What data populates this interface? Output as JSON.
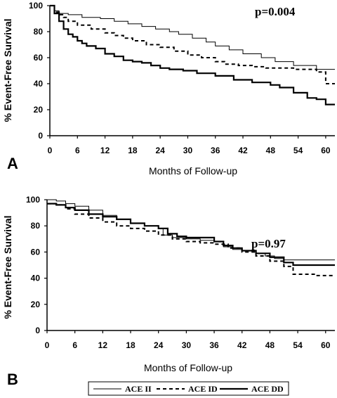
{
  "chart_data": [
    {
      "type": "line",
      "panel_label": "A",
      "annotation": "p=0.004",
      "xlabel": "Months of Follow-up",
      "ylabel": "% Event-Free Survival",
      "xlim": [
        0,
        62
      ],
      "ylim": [
        0,
        100
      ],
      "xticks": [
        0,
        6,
        12,
        18,
        24,
        30,
        36,
        42,
        48,
        54,
        60
      ],
      "yticks": [
        0,
        20,
        40,
        60,
        80,
        100
      ],
      "series": [
        {
          "name": "ACE II",
          "style": "thin",
          "x": [
            0,
            1,
            2,
            4,
            7,
            11,
            14,
            17,
            20,
            23,
            26,
            28,
            31,
            34,
            36,
            39,
            42,
            46,
            49,
            53,
            58,
            62
          ],
          "y": [
            100,
            96,
            94,
            93,
            91,
            90,
            88,
            86,
            84,
            82,
            80,
            78,
            75,
            72,
            69,
            66,
            63,
            60,
            57,
            54,
            51,
            51
          ]
        },
        {
          "name": "ACE ID",
          "style": "dashed",
          "x": [
            0,
            1,
            2,
            3,
            4,
            6,
            9,
            12,
            14,
            16,
            18,
            21,
            24,
            27,
            30,
            33,
            36,
            38,
            41,
            44,
            47,
            50,
            53,
            56,
            58,
            60,
            62
          ],
          "y": [
            100,
            95,
            93,
            91,
            88,
            85,
            82,
            79,
            77,
            75,
            73,
            70,
            68,
            65,
            62,
            60,
            57,
            55,
            54,
            53,
            52,
            52,
            51,
            51,
            49,
            40,
            40
          ]
        },
        {
          "name": "ACE DD",
          "style": "thick",
          "x": [
            0,
            1,
            2,
            3,
            4,
            5,
            6,
            7,
            8,
            10,
            12,
            14,
            16,
            18,
            20,
            22,
            24,
            26,
            29,
            32,
            36,
            40,
            44,
            48,
            50,
            53,
            56,
            58,
            60,
            62
          ],
          "y": [
            100,
            94,
            88,
            82,
            78,
            76,
            73,
            71,
            69,
            67,
            63,
            61,
            58,
            57,
            56,
            54,
            52,
            51,
            50,
            48,
            46,
            43,
            41,
            39,
            37,
            33,
            29,
            28,
            24,
            24
          ]
        }
      ]
    },
    {
      "type": "line",
      "panel_label": "B",
      "annotation": "p=0.97",
      "xlabel": "Months of Follow-up",
      "ylabel": "% Event-Free Survival",
      "xlim": [
        0,
        62
      ],
      "ylim": [
        0,
        100
      ],
      "xticks": [
        0,
        6,
        12,
        18,
        24,
        30,
        36,
        42,
        48,
        54,
        60
      ],
      "yticks": [
        0,
        20,
        40,
        60,
        80,
        100
      ],
      "series": [
        {
          "name": "ACE II",
          "style": "thin",
          "x": [
            0,
            2,
            4,
            6,
            9,
            12,
            15,
            18,
            21,
            24,
            25,
            27,
            30,
            33,
            36,
            38,
            40,
            42,
            45,
            47,
            49,
            51,
            53,
            62
          ],
          "y": [
            100,
            99,
            97,
            95,
            92,
            88,
            85,
            82,
            80,
            78,
            73,
            71,
            70,
            69,
            68,
            64,
            62,
            61,
            59,
            57,
            55,
            54,
            54,
            54
          ]
        },
        {
          "name": "ACE ID",
          "style": "dashed",
          "x": [
            0,
            2,
            4,
            6,
            9,
            12,
            15,
            18,
            21,
            24,
            27,
            30,
            33,
            36,
            39,
            42,
            45,
            48,
            51,
            53,
            55,
            58,
            62
          ],
          "y": [
            97,
            96,
            93,
            89,
            86,
            83,
            80,
            78,
            76,
            73,
            70,
            68,
            67,
            66,
            63,
            60,
            57,
            53,
            49,
            43,
            43,
            42,
            42
          ]
        },
        {
          "name": "ACE DD",
          "style": "thick",
          "x": [
            0,
            2,
            4,
            6,
            9,
            12,
            15,
            18,
            21,
            24,
            26,
            28,
            30,
            33,
            36,
            38,
            40,
            42,
            45,
            48,
            51,
            53,
            62
          ],
          "y": [
            97,
            96,
            94,
            92,
            89,
            87,
            85,
            82,
            80,
            78,
            74,
            72,
            71,
            71,
            68,
            65,
            63,
            61,
            59,
            56,
            52,
            50,
            50
          ]
        }
      ]
    }
  ],
  "legend": [
    {
      "label": "ACE II",
      "style": "thin"
    },
    {
      "label": "ACE ID",
      "style": "dashed"
    },
    {
      "label": "ACE DD",
      "style": "thick"
    }
  ]
}
